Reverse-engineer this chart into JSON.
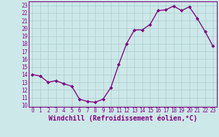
{
  "x": [
    0,
    1,
    2,
    3,
    4,
    5,
    6,
    7,
    8,
    9,
    10,
    11,
    12,
    13,
    14,
    15,
    16,
    17,
    18,
    19,
    20,
    21,
    22,
    23
  ],
  "y": [
    14.0,
    13.8,
    13.0,
    13.2,
    12.8,
    12.5,
    10.8,
    10.5,
    10.4,
    10.8,
    12.3,
    15.3,
    18.0,
    19.8,
    19.8,
    20.5,
    22.3,
    22.4,
    22.9,
    22.3,
    22.8,
    21.3,
    19.6,
    17.7
  ],
  "line_color": "#800080",
  "marker": "D",
  "markersize": 2.2,
  "linewidth": 1.0,
  "bg_color": "#cce8e8",
  "grid_color": "#aacccc",
  "xlabel": "Windchill (Refroidissement éolien,°C)",
  "xlim": [
    -0.5,
    23.5
  ],
  "ylim": [
    9.8,
    23.5
  ],
  "yticks": [
    10,
    11,
    12,
    13,
    14,
    15,
    16,
    17,
    18,
    19,
    20,
    21,
    22,
    23
  ],
  "xticks": [
    0,
    1,
    2,
    3,
    4,
    5,
    6,
    7,
    8,
    9,
    10,
    11,
    12,
    13,
    14,
    15,
    16,
    17,
    18,
    19,
    20,
    21,
    22,
    23
  ],
  "tick_fontsize": 5.5,
  "xlabel_fontsize": 7.0,
  "spine_color": "#800080"
}
